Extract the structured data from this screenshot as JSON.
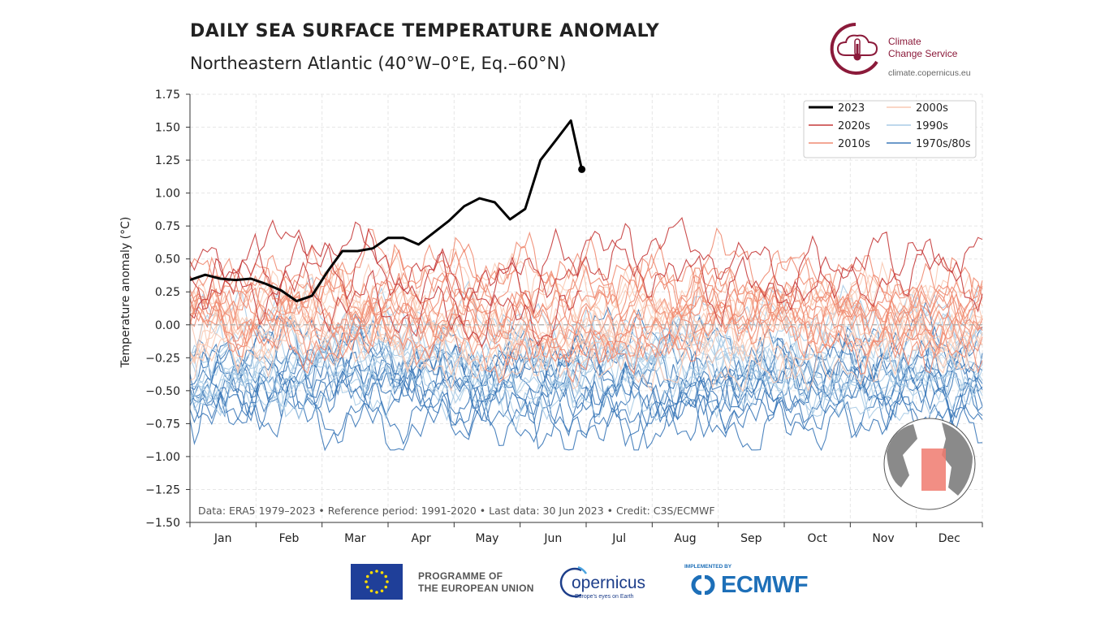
{
  "header": {
    "title": "DAILY SEA SURFACE TEMPERATURE ANOMALY",
    "subtitle": "Northeastern Atlantic (40°W–0°E, Eq.–60°N)"
  },
  "branding": {
    "c3s_line1": "Climate",
    "c3s_line2": "Change Service",
    "c3s_url": "climate.copernicus.eu",
    "eu_line1": "PROGRAMME OF",
    "eu_line2": "THE EUROPEAN UNION",
    "copernicus": "opernicus",
    "copernicus_tagline": "Europe's eyes on Earth",
    "ecmwf_implemented": "IMPLEMENTED BY",
    "ecmwf": "ECMWF",
    "c3s_color": "#8b1a3a",
    "eu_blue": "#1f3f99",
    "ecmwf_blue": "#1d6fb8"
  },
  "chart_data": {
    "type": "line",
    "title": "DAILY SEA SURFACE TEMPERATURE ANOMALY",
    "subtitle": "Northeastern Atlantic (40°W–0°E, Eq.–60°N)",
    "xlabel": "",
    "ylabel": "Temperature anomaly (°C)",
    "ylim": [
      -1.5,
      1.75
    ],
    "yticks": [
      1.75,
      1.5,
      1.25,
      1.0,
      0.75,
      0.5,
      0.25,
      0.0,
      -0.25,
      -0.5,
      -0.75,
      -1.0,
      -1.25,
      -1.5
    ],
    "ytick_labels": [
      "1.75",
      "1.50",
      "1.25",
      "1.00",
      "0.75",
      "0.50",
      "0.25",
      "0.00",
      "−0.25",
      "−0.50",
      "−0.75",
      "−1.00",
      "−1.25",
      "−1.50"
    ],
    "months": [
      "Jan",
      "Feb",
      "Mar",
      "Apr",
      "May",
      "Jun",
      "Jul",
      "Aug",
      "Sep",
      "Oct",
      "Nov",
      "Dec"
    ],
    "grid": true,
    "legend_position": "top-right",
    "legend": [
      {
        "label": "2023",
        "color": "#000000"
      },
      {
        "label": "2020s",
        "color": "#c53a3a"
      },
      {
        "label": "2010s",
        "color": "#ef8a70"
      },
      {
        "label": "2000s",
        "color": "#f9c9b3"
      },
      {
        "label": "1990s",
        "color": "#a9cbe6"
      },
      {
        "label": "1970s/80s",
        "color": "#3b78b8"
      }
    ],
    "series_2023": {
      "name": "2023",
      "x_day": [
        1,
        8,
        15,
        22,
        29,
        36,
        43,
        50,
        57,
        64,
        71,
        78,
        85,
        92,
        99,
        106,
        113,
        120,
        127,
        134,
        141,
        148,
        155,
        162,
        169,
        176,
        181
      ],
      "y": [
        0.34,
        0.38,
        0.35,
        0.34,
        0.35,
        0.31,
        0.26,
        0.18,
        0.22,
        0.4,
        0.56,
        0.56,
        0.58,
        0.66,
        0.66,
        0.61,
        0.7,
        0.79,
        0.9,
        0.96,
        0.93,
        0.8,
        0.88,
        1.25,
        1.4,
        1.55,
        1.18
      ]
    },
    "background_series_note": "Historical years 1979–2022 drawn as thin lines colored by decade",
    "decade_profiles": {
      "1970s/80s": {
        "base": -0.45,
        "count": 11
      },
      "1990s": {
        "base": -0.3,
        "count": 10
      },
      "2000s": {
        "base": 0.05,
        "count": 10
      },
      "2010s": {
        "base": 0.1,
        "count": 10
      },
      "2020s": {
        "base": 0.28,
        "count": 3
      }
    },
    "annotation": "Data: ERA5 1979–2023 • Reference period: 1991-2020 • Last data: 30 Jun 2023 • Credit: C3S/ECMWF"
  }
}
